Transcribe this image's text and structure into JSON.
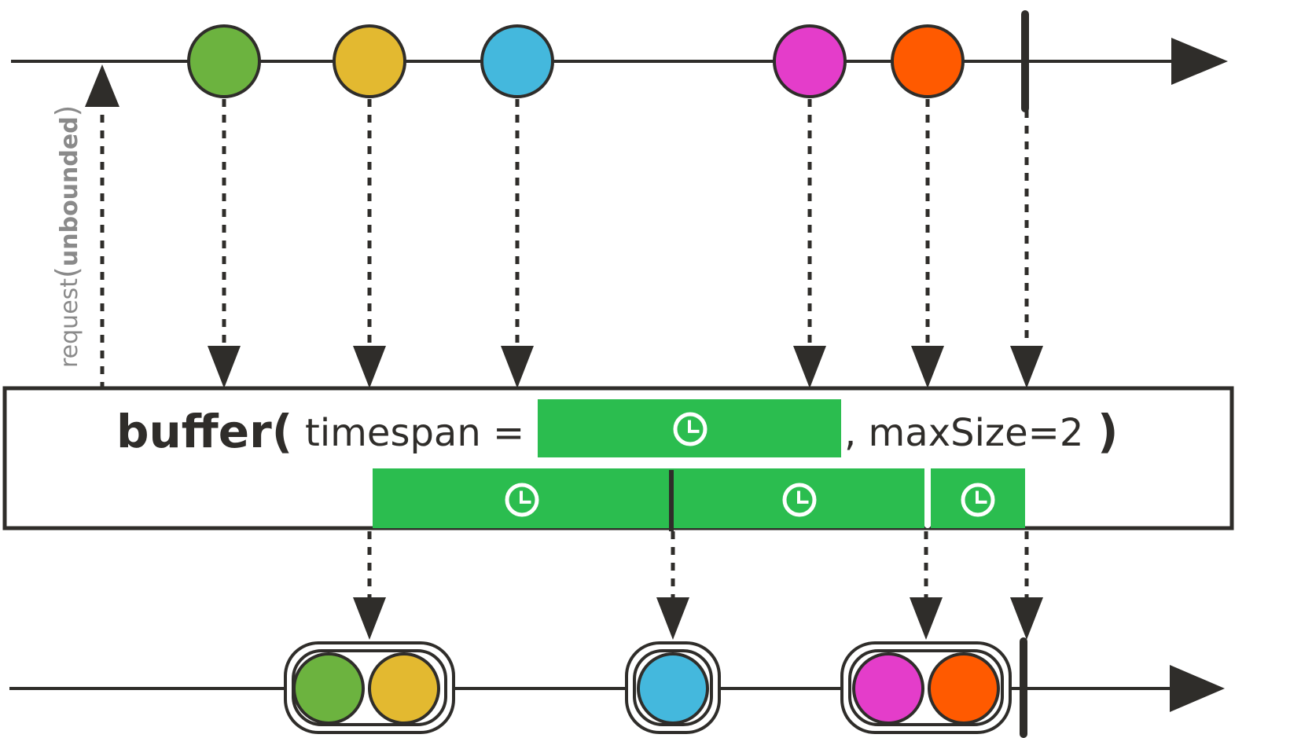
{
  "operator": {
    "name": "buffer(",
    "arg_timespan": "timespan =",
    "arg_maxsize": ", maxSize=2",
    "close": ")"
  },
  "request_label": {
    "prefix": "request",
    "open": "(",
    "value": "unbounded",
    "close": ")"
  },
  "colors": {
    "line": "#2f2d2a",
    "timer": "#2bbd4f",
    "green": "#6cb33f",
    "yellow": "#e3b930",
    "blue": "#44b8dd",
    "magenta": "#e43dca",
    "orange": "#ff5a00",
    "label_gray": "#8a8a8a"
  },
  "source_items": [
    {
      "color": "green"
    },
    {
      "color": "yellow"
    },
    {
      "color": "blue"
    },
    {
      "color": "magenta"
    },
    {
      "color": "orange"
    }
  ],
  "timer_icon": "clock-icon",
  "output_buffers": [
    {
      "items": [
        "green",
        "yellow"
      ]
    },
    {
      "items": [
        "blue"
      ]
    },
    {
      "items": [
        "magenta",
        "orange"
      ]
    }
  ],
  "completion": true
}
